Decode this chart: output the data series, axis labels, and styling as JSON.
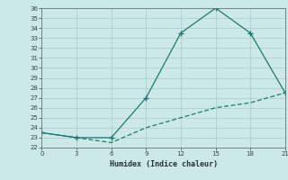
{
  "xlabel": "Humidex (Indice chaleur)",
  "x": [
    0,
    3,
    6,
    9,
    12,
    15,
    18,
    21
  ],
  "line1_y": [
    23.5,
    23.0,
    23.0,
    27.0,
    33.5,
    36.0,
    33.5,
    27.5
  ],
  "line2_y": [
    23.5,
    23.0,
    22.5,
    24.0,
    25.0,
    26.0,
    26.5,
    27.5
  ],
  "line_color": "#1a7a6e",
  "bg_color": "#cce8e8",
  "grid_color": "#aacccc",
  "ylim_min": 22,
  "ylim_max": 36,
  "xlim_min": 0,
  "xlim_max": 21,
  "yticks": [
    22,
    23,
    24,
    25,
    26,
    27,
    28,
    29,
    30,
    31,
    32,
    33,
    34,
    35,
    36
  ],
  "xticks": [
    0,
    3,
    6,
    9,
    12,
    15,
    18,
    21
  ]
}
